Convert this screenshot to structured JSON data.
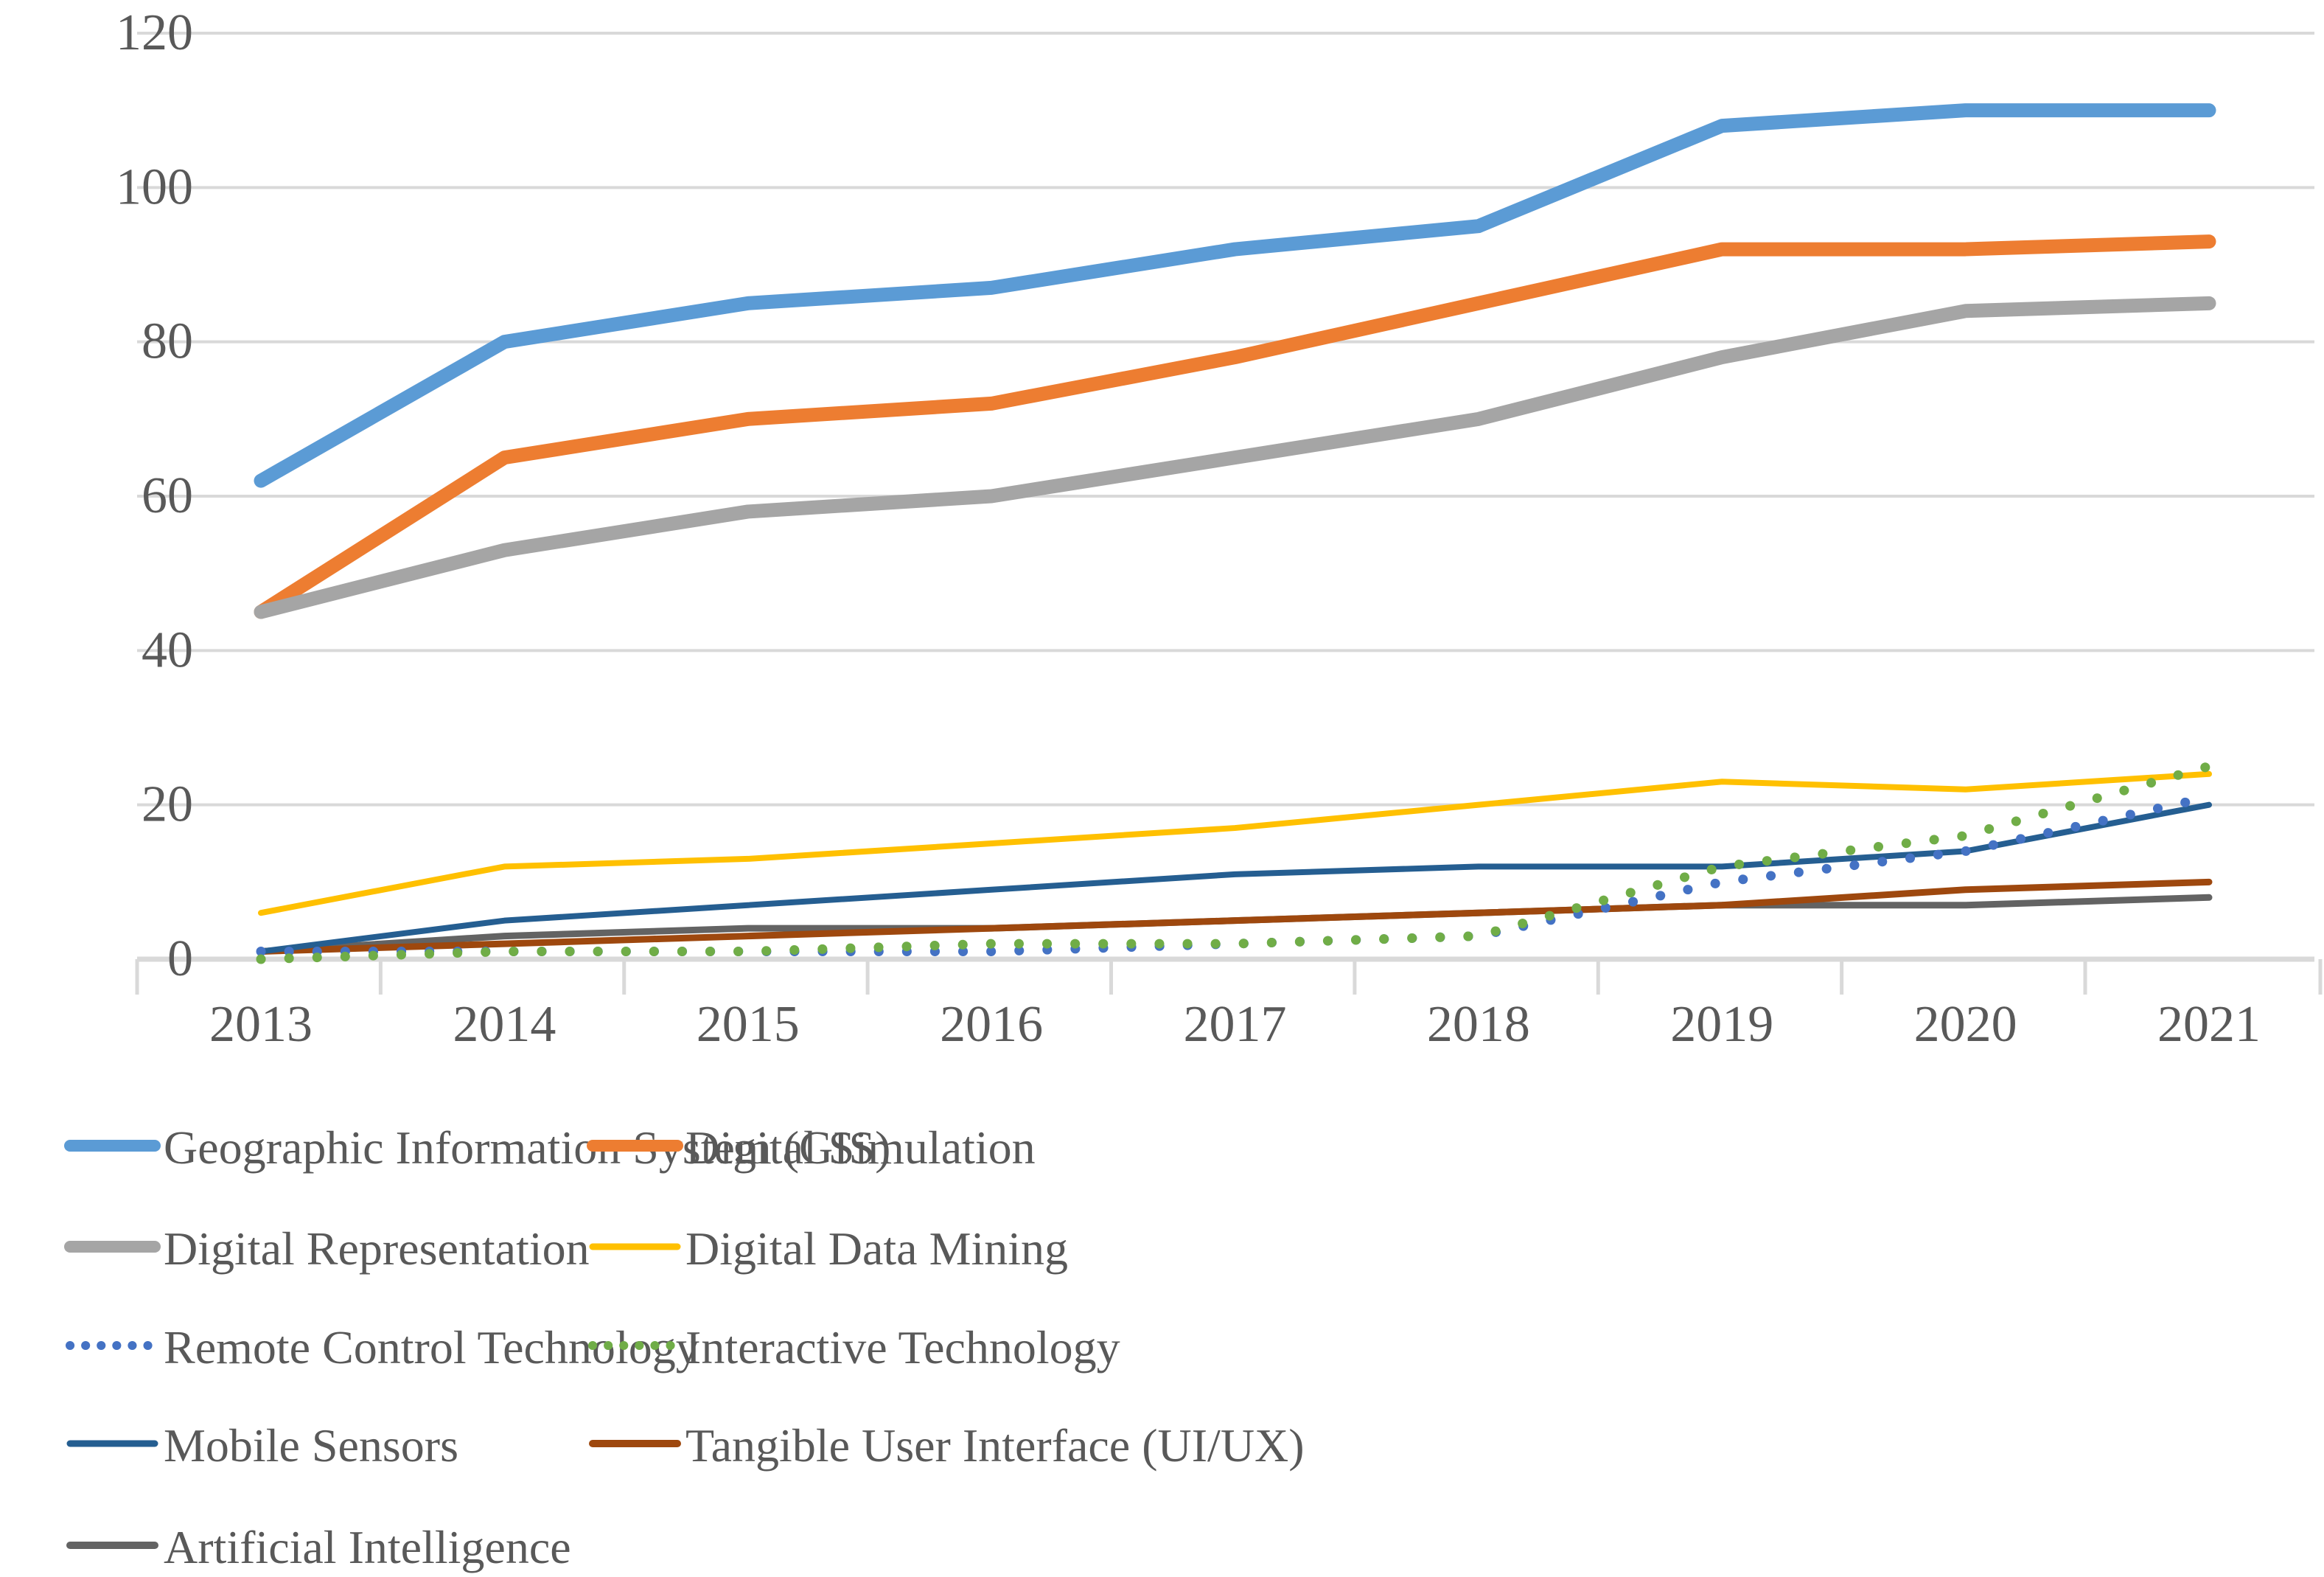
{
  "chart_data": {
    "type": "line",
    "title": "",
    "xlabel": "",
    "ylabel": "",
    "categories": [
      "2013",
      "2014",
      "2015",
      "2016",
      "2017",
      "2018",
      "2019",
      "2020",
      "2021"
    ],
    "y_ticks": [
      0,
      20,
      40,
      60,
      80,
      100,
      120
    ],
    "ylim": [
      0,
      120
    ],
    "grid": "horizontal",
    "legend_position": "bottom",
    "text_color": "#595959",
    "grid_color": "#D9D9D9",
    "series": [
      {
        "name": "Geographic Information System (GIS)",
        "slug": "gis",
        "color": "#5B9BD5",
        "line_style": "solid",
        "line_weight": "thick",
        "values": [
          62,
          80,
          85,
          87,
          92,
          95,
          108,
          110,
          110
        ]
      },
      {
        "name": "Digital Simulation",
        "slug": "digital-simulation",
        "color": "#ED7D31",
        "line_style": "solid",
        "line_weight": "thick",
        "values": [
          45,
          65,
          70,
          72,
          78,
          85,
          92,
          92,
          93
        ]
      },
      {
        "name": "Digital Representation",
        "slug": "digital-representation",
        "color": "#A5A5A5",
        "line_style": "solid",
        "line_weight": "thick",
        "values": [
          45,
          53,
          58,
          60,
          65,
          70,
          78,
          84,
          85
        ]
      },
      {
        "name": "Digital Data Mining",
        "slug": "digital-data-mining",
        "color": "#FFC000",
        "line_style": "solid",
        "line_weight": "thin",
        "values": [
          6,
          12,
          13,
          15,
          17,
          20,
          23,
          22,
          24
        ]
      },
      {
        "name": "Remote Control Technology",
        "slug": "remote-control-technology",
        "color": "#4472C4",
        "line_style": "dotted",
        "line_weight": "dotted",
        "values": [
          1,
          1,
          1,
          1,
          2,
          3,
          10,
          14,
          21
        ]
      },
      {
        "name": "Interactive Technology",
        "slug": "interactive-technology",
        "color": "#70AD47",
        "line_style": "dotted",
        "line_weight": "dotted",
        "values": [
          0,
          1,
          1,
          2,
          2,
          3,
          12,
          16,
          25
        ]
      },
      {
        "name": "Mobile Sensors",
        "slug": "mobile-sensors",
        "color": "#255E91",
        "line_style": "solid",
        "line_weight": "thin",
        "values": [
          1,
          5,
          7,
          9,
          11,
          12,
          12,
          14,
          20
        ]
      },
      {
        "name": "Tangible User Interface (UI/UX)",
        "slug": "tangible-user-interface",
        "color": "#9E480E",
        "line_style": "solid",
        "line_weight": "medium",
        "values": [
          1,
          2,
          3,
          4,
          5,
          6,
          7,
          9,
          10
        ]
      },
      {
        "name": "Artificial Intelligence",
        "slug": "artificial-intelligence",
        "color": "#636363",
        "line_style": "solid",
        "line_weight": "medium",
        "values": [
          1,
          3,
          4,
          4,
          5,
          6,
          7,
          7,
          8
        ]
      }
    ],
    "legend": {
      "left_column": [
        "Geographic Information System (GIS)",
        "Digital Representation",
        "Remote Control Technology",
        "Mobile Sensors",
        "Artificial Intelligence"
      ],
      "right_column": [
        "Digital Simulation",
        "Digital Data Mining",
        "Interactive Technology",
        "Tangible User Interface (UI/UX)"
      ]
    }
  }
}
